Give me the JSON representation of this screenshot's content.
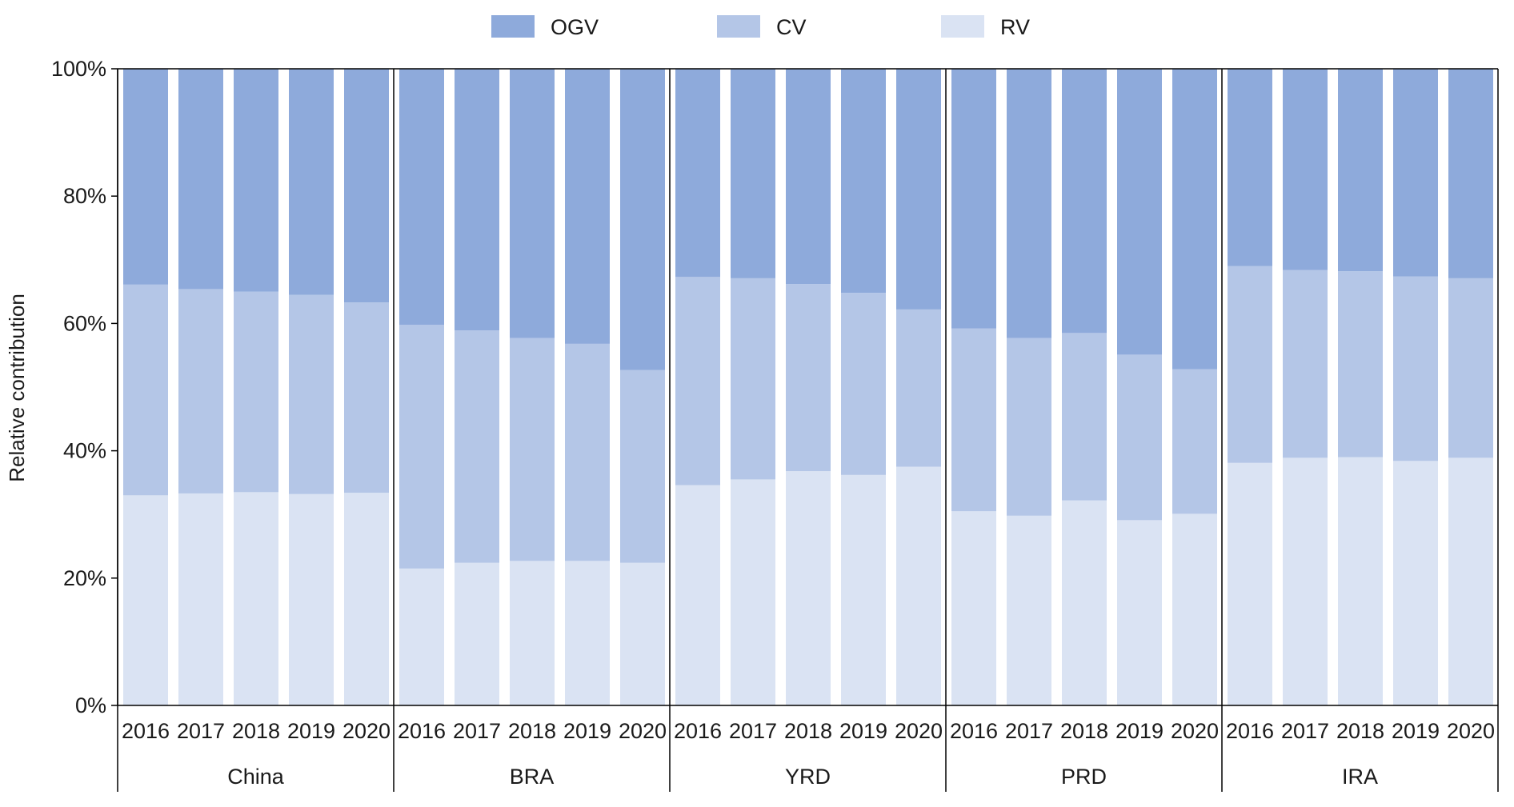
{
  "chart_data": {
    "type": "bar",
    "stacked": true,
    "orientation": "vertical",
    "ylabel": "Relative contribution",
    "ylim": [
      0,
      100
    ],
    "yticks": [
      "0%",
      "20%",
      "40%",
      "60%",
      "80%",
      "100%"
    ],
    "legend": {
      "placement": "top-center",
      "order": [
        "OGV",
        "CV",
        "RV"
      ]
    },
    "grid": false,
    "colors": {
      "OGV": "#8eaadb",
      "CV": "#b4c6e7",
      "RV": "#dae3f3"
    },
    "groups": [
      {
        "name": "China",
        "categories": [
          "2016",
          "2017",
          "2018",
          "2019",
          "2020"
        ]
      },
      {
        "name": "BRA",
        "categories": [
          "2016",
          "2017",
          "2018",
          "2019",
          "2020"
        ]
      },
      {
        "name": "YRD",
        "categories": [
          "2016",
          "2017",
          "2018",
          "2019",
          "2020"
        ]
      },
      {
        "name": "PRD",
        "categories": [
          "2016",
          "2017",
          "2018",
          "2019",
          "2020"
        ]
      },
      {
        "name": "IRA",
        "categories": [
          "2016",
          "2017",
          "2018",
          "2019",
          "2020"
        ]
      }
    ],
    "series": [
      {
        "name": "RV",
        "values": [
          33,
          33.3,
          33.5,
          33.2,
          33.4,
          21.5,
          22.4,
          22.7,
          22.7,
          22.4,
          34.6,
          35.5,
          36.8,
          36.2,
          37.5,
          30.5,
          29.8,
          32.2,
          29.1,
          30.1,
          38.1,
          38.9,
          39,
          38.4,
          38.9
        ]
      },
      {
        "name": "CV",
        "values": [
          33.1,
          32.1,
          31.5,
          31.3,
          29.9,
          38.3,
          36.5,
          35.0,
          34.1,
          30.3,
          32.7,
          31.6,
          29.4,
          28.6,
          24.7,
          28.7,
          27.9,
          26.3,
          26.0,
          22.7,
          30.9,
          29.5,
          29.2,
          29.0,
          28.2
        ]
      },
      {
        "name": "OGV",
        "values": [
          33.9,
          34.6,
          35.0,
          35.5,
          36.7,
          40.2,
          41.1,
          42.3,
          43.2,
          47.3,
          32.7,
          32.9,
          33.8,
          35.2,
          37.8,
          40.8,
          42.3,
          41.5,
          44.9,
          47.2,
          31.0,
          31.6,
          31.8,
          32.6,
          32.9
        ]
      }
    ]
  }
}
